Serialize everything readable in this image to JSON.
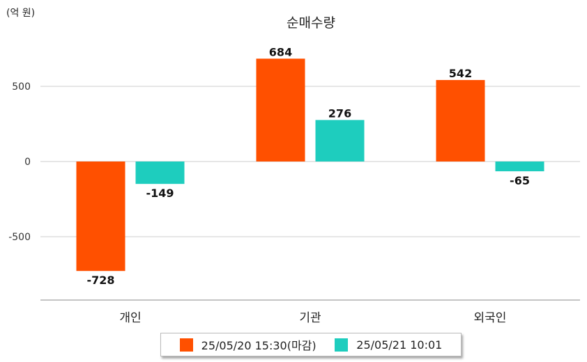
{
  "chart_data": {
    "type": "bar",
    "title": "순매수량",
    "unit_label": "(억 원)",
    "categories": [
      "개인",
      "기관",
      "외국인"
    ],
    "series": [
      {
        "name": "25/05/20 15:30(마감)",
        "color": "#ff5000",
        "values": [
          -728,
          684,
          542
        ]
      },
      {
        "name": "25/05/21 10:01",
        "color": "#1ecdbe",
        "values": [
          -149,
          276,
          -65
        ]
      }
    ],
    "yticks": [
      500,
      0,
      -500
    ],
    "ylim": [
      -913,
      809
    ],
    "grid": true,
    "legend": "bottom"
  }
}
